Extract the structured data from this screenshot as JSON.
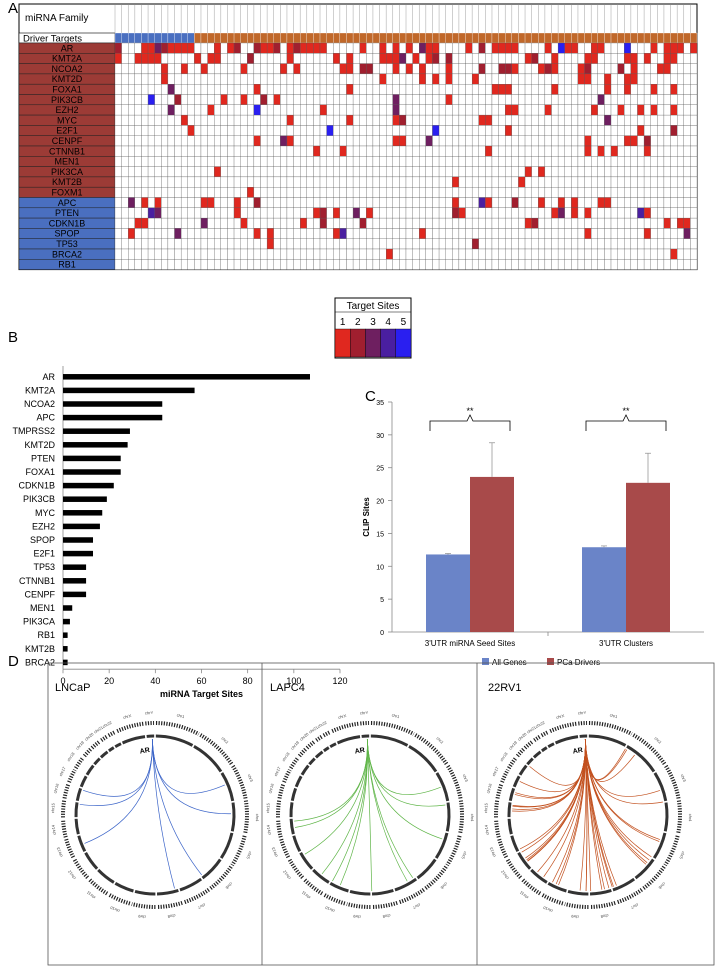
{
  "panels": {
    "a": "A",
    "b": "B",
    "c": "C",
    "d": "D"
  },
  "chart_data": [
    {
      "type": "heatmap",
      "header_family": "miRNA Family",
      "header_targets": "Driver Targets",
      "rows_red": [
        "AR",
        "KMT2A",
        "NCOA2",
        "KMT2D",
        "FOXA1",
        "PIK3CB",
        "EZH2",
        "MYC",
        "E2F1",
        "CENPF",
        "CTNNB1",
        "MEN1",
        "PIK3CA",
        "KMT2B",
        "FOXM1"
      ],
      "rows_blue": [
        "APC",
        "PTEN",
        "CDKN1B",
        "SPOP",
        "TP53",
        "BRCA2",
        "RB1"
      ],
      "n_columns": 88,
      "legend_title": "Target Sites",
      "legend_levels": [
        "1",
        "2",
        "3",
        "4",
        "5"
      ],
      "legend_colors": [
        "#e0281f",
        "#a01f2f",
        "#6e1f60",
        "#4a1fa0",
        "#2a1ff0"
      ]
    },
    {
      "type": "bar",
      "orientation": "horizontal",
      "categories": [
        "AR",
        "KMT2A",
        "NCOA2",
        "APC",
        "TMPRSS2",
        "KMT2D",
        "PTEN",
        "FOXA1",
        "CDKN1B",
        "PIK3CB",
        "MYC",
        "EZH2",
        "SPOP",
        "E2F1",
        "TP53",
        "CTNNB1",
        "CENPF",
        "MEN1",
        "PIK3CA",
        "RB1",
        "KMT2B",
        "BRCA2"
      ],
      "values": [
        107,
        57,
        43,
        43,
        29,
        28,
        25,
        25,
        22,
        19,
        17,
        16,
        13,
        13,
        10,
        10,
        10,
        4,
        3,
        2,
        2,
        2
      ],
      "xlabel": "miRNA Target Sites",
      "xlim": [
        0,
        120
      ],
      "xticks": [
        "0",
        "20",
        "40",
        "60",
        "80",
        "100",
        "120"
      ]
    },
    {
      "type": "bar",
      "categories": [
        "3'UTR miRNA Seed Sites",
        "3'UTR Clusters"
      ],
      "series": [
        {
          "name": "All Genes",
          "values": [
            11.8,
            12.9
          ],
          "errors": [
            0.15,
            0.2
          ],
          "color": "#6a84c8"
        },
        {
          "name": "PCa Drivers",
          "values": [
            23.6,
            22.7
          ],
          "errors": [
            5.2,
            4.5
          ],
          "color": "#a84a4a"
        }
      ],
      "ylabel": "CLIP Sites",
      "ylim": [
        0,
        35
      ],
      "yticks": [
        "0",
        "5",
        "10",
        "15",
        "20",
        "25",
        "30",
        "35"
      ],
      "significance": [
        "**",
        "**"
      ],
      "legend_position": "bottom"
    },
    {
      "type": "circos",
      "cell_lines": [
        "LNCaP",
        "LAPC4",
        "22RV1"
      ],
      "focus_gene": "AR",
      "link_colors": [
        "#3b64c8",
        "#5fb548",
        "#c2501e"
      ],
      "link_counts": [
        7,
        12,
        40
      ],
      "chromosomes": [
        "chr1",
        "chr2",
        "chr3",
        "chr4",
        "chr5",
        "chr6",
        "chr7",
        "chr8",
        "chr9",
        "chr10",
        "chr11",
        "chr12",
        "chr13",
        "chr14",
        "chr15",
        "chr16",
        "chr17",
        "chr18",
        "chr19",
        "chr20",
        "chr21",
        "chr22",
        "chrX",
        "chrY"
      ]
    }
  ]
}
